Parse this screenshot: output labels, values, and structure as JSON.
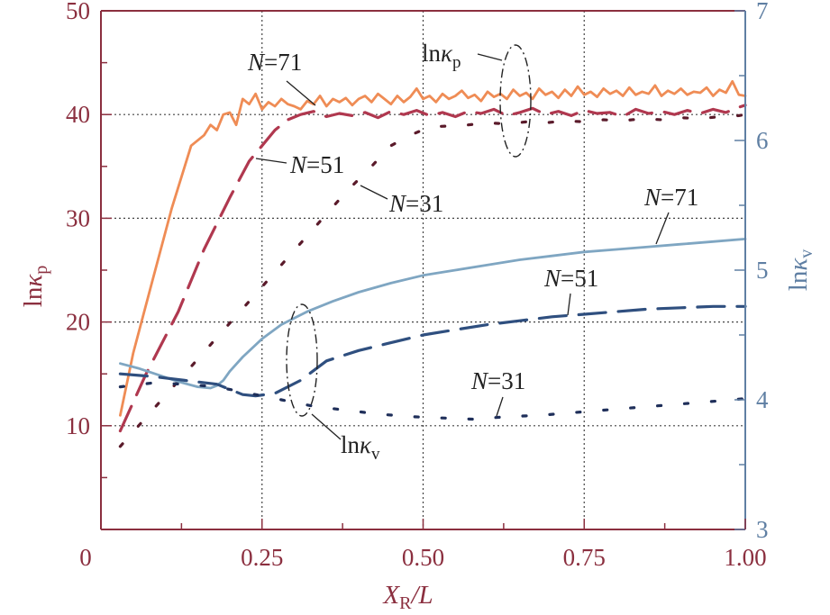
{
  "chart_data": {
    "type": "line",
    "title": "",
    "xlabel": {
      "main": "X",
      "sub": "R",
      "rest": "/L"
    },
    "ylabel_left": {
      "main": "ln",
      "kappa": "κ",
      "sub": "p"
    },
    "ylabel_right": {
      "main": "ln",
      "kappa": "κ",
      "sub": "v"
    },
    "xlim": [
      0,
      1.0
    ],
    "ylim_left": [
      0,
      50
    ],
    "ylim_right": [
      3,
      7
    ],
    "grid": true,
    "x_ticks": [
      {
        "value": 0.25,
        "label": "0.25"
      },
      {
        "value": 0.5,
        "label": "0.50"
      },
      {
        "value": 0.75,
        "label": "0.75"
      },
      {
        "value": 1.0,
        "label": "1.00"
      }
    ],
    "origin_label": "0",
    "y_left_ticks": [
      {
        "value": 10,
        "label": "10"
      },
      {
        "value": 20,
        "label": "20"
      },
      {
        "value": 30,
        "label": "30"
      },
      {
        "value": 40,
        "label": "40"
      },
      {
        "value": 50,
        "label": "50"
      }
    ],
    "y_right_ticks": [
      {
        "value": 3,
        "label": "3"
      },
      {
        "value": 4,
        "label": "4"
      },
      {
        "value": 5,
        "label": "5"
      },
      {
        "value": 6,
        "label": "6"
      },
      {
        "value": 7,
        "label": "7"
      }
    ],
    "colors": {
      "left_axis": "#8b2f3f",
      "right_axis": "#5f7fa3",
      "p_N71": "#ef8c55",
      "p_N51": "#b0384f",
      "p_N31": "#5a1a2a",
      "v_N71": "#7fa6c2",
      "v_N51": "#2f4f7f",
      "v_N31": "#1f2f5a"
    },
    "series": [
      {
        "name": "lnκp N=71",
        "axis": "left",
        "style": "solid",
        "x": [
          0.03,
          0.05,
          0.08,
          0.11,
          0.14,
          0.16,
          0.17,
          0.18,
          0.19,
          0.2,
          0.21,
          0.22,
          0.23,
          0.24,
          0.25,
          0.26,
          0.27,
          0.28,
          0.29,
          0.3,
          0.31,
          0.32,
          0.33,
          0.34,
          0.35,
          0.36,
          0.37,
          0.38,
          0.39,
          0.4,
          0.41,
          0.42,
          0.43,
          0.44,
          0.45,
          0.46,
          0.47,
          0.48,
          0.49,
          0.5,
          0.51,
          0.52,
          0.53,
          0.54,
          0.55,
          0.56,
          0.57,
          0.58,
          0.59,
          0.6,
          0.61,
          0.62,
          0.63,
          0.64,
          0.65,
          0.66,
          0.67,
          0.68,
          0.69,
          0.7,
          0.71,
          0.72,
          0.73,
          0.74,
          0.75,
          0.76,
          0.77,
          0.78,
          0.79,
          0.8,
          0.81,
          0.82,
          0.83,
          0.84,
          0.85,
          0.86,
          0.87,
          0.88,
          0.89,
          0.9,
          0.91,
          0.92,
          0.93,
          0.94,
          0.95,
          0.96,
          0.97,
          0.98,
          0.99,
          1.0
        ],
        "y": [
          11,
          17,
          24,
          31,
          37,
          38,
          39,
          38.5,
          40,
          40.2,
          39,
          41.5,
          41,
          42,
          40.5,
          41.2,
          40.8,
          41.5,
          41,
          40.8,
          40.5,
          41.3,
          41,
          41.8,
          40.8,
          41.5,
          41.2,
          41.6,
          40.9,
          41.5,
          41.8,
          41.2,
          42,
          41.5,
          41,
          41.8,
          41.2,
          41.7,
          42.5,
          41.5,
          41.8,
          41.2,
          42,
          41.5,
          41.8,
          42.3,
          41.6,
          41.9,
          41.3,
          42.2,
          41.7,
          42,
          41.5,
          42.4,
          41.8,
          42.1,
          41.5,
          42.5,
          41.9,
          42.2,
          41.6,
          42.4,
          41.8,
          42.7,
          41.9,
          42.2,
          41.7,
          42.5,
          42,
          42.3,
          41.8,
          42.6,
          41.9,
          42.2,
          42,
          42.8,
          41.8,
          42.3,
          42,
          42.5,
          41.9,
          42.2,
          42.1,
          42.6,
          41.8,
          42.4,
          42.1,
          43.2,
          41.9,
          41.8
        ]
      },
      {
        "name": "lnκp N=51",
        "axis": "left",
        "style": "dashed",
        "x": [
          0.03,
          0.07,
          0.12,
          0.16,
          0.2,
          0.23,
          0.25,
          0.27,
          0.29,
          0.31,
          0.33,
          0.35,
          0.37,
          0.39,
          0.41,
          0.43,
          0.45,
          0.47,
          0.49,
          0.51,
          0.53,
          0.55,
          0.57,
          0.59,
          0.61,
          0.63,
          0.65,
          0.67,
          0.69,
          0.71,
          0.73,
          0.75,
          0.77,
          0.79,
          0.81,
          0.83,
          0.85,
          0.87,
          0.89,
          0.91,
          0.93,
          0.95,
          0.97,
          0.99,
          1.0
        ],
        "y": [
          9.5,
          15,
          21,
          27,
          32,
          35.5,
          37,
          38.5,
          39.5,
          40,
          40.3,
          39.8,
          40.1,
          39.9,
          40.2,
          39.7,
          40.3,
          40,
          40.4,
          39.9,
          40.2,
          39.8,
          40.3,
          40.1,
          40.5,
          39.9,
          40.2,
          40.6,
          40,
          40.3,
          39.9,
          40.4,
          40.1,
          40.2,
          39.8,
          40.5,
          40.1,
          40.3,
          40,
          40.4,
          40.1,
          40.5,
          40.2,
          40.7,
          40.9
        ]
      },
      {
        "name": "lnκp N=31",
        "axis": "left",
        "style": "dotted",
        "x": [
          0.03,
          0.08,
          0.13,
          0.18,
          0.23,
          0.28,
          0.33,
          0.38,
          0.42,
          0.45,
          0.48,
          0.51,
          0.54,
          0.57,
          0.6,
          0.63,
          0.66,
          0.69,
          0.72,
          0.75,
          0.78,
          0.81,
          0.84,
          0.87,
          0.9,
          0.93,
          0.96,
          0.99,
          1.0
        ],
        "y": [
          8,
          11.5,
          15,
          18.5,
          22,
          25.5,
          29,
          32.5,
          35,
          37,
          38,
          38.8,
          38.9,
          39,
          39.2,
          39.1,
          39.3,
          39.2,
          39.4,
          39.3,
          39.5,
          39.4,
          39.6,
          39.5,
          39.7,
          39.6,
          39.8,
          39.9,
          40
        ]
      },
      {
        "name": "lnκv N=71",
        "axis": "right",
        "style": "solid",
        "x": [
          0.03,
          0.06,
          0.09,
          0.12,
          0.15,
          0.17,
          0.18,
          0.19,
          0.2,
          0.22,
          0.25,
          0.28,
          0.32,
          0.36,
          0.4,
          0.45,
          0.5,
          0.55,
          0.6,
          0.65,
          0.7,
          0.75,
          0.8,
          0.85,
          0.9,
          0.95,
          1.0
        ],
        "y": [
          4.28,
          4.24,
          4.19,
          4.14,
          4.1,
          4.09,
          4.11,
          4.15,
          4.22,
          4.33,
          4.47,
          4.58,
          4.68,
          4.76,
          4.83,
          4.9,
          4.96,
          5.0,
          5.04,
          5.08,
          5.11,
          5.14,
          5.16,
          5.18,
          5.2,
          5.22,
          5.24
        ]
      },
      {
        "name": "lnκv N=51",
        "axis": "right",
        "style": "dashed",
        "x": [
          0.03,
          0.08,
          0.13,
          0.18,
          0.22,
          0.24,
          0.27,
          0.31,
          0.35,
          0.4,
          0.45,
          0.5,
          0.55,
          0.6,
          0.65,
          0.7,
          0.75,
          0.8,
          0.85,
          0.9,
          0.95,
          1.0
        ],
        "y": [
          4.2,
          4.18,
          4.15,
          4.12,
          4.04,
          4.03,
          4.05,
          4.15,
          4.3,
          4.38,
          4.44,
          4.5,
          4.54,
          4.58,
          4.61,
          4.64,
          4.66,
          4.68,
          4.7,
          4.71,
          4.72,
          4.72
        ]
      },
      {
        "name": "lnκv N=31",
        "axis": "right",
        "style": "dotted",
        "x": [
          0.03,
          0.08,
          0.13,
          0.18,
          0.23,
          0.28,
          0.33,
          0.38,
          0.43,
          0.48,
          0.53,
          0.58,
          0.63,
          0.68,
          0.73,
          0.78,
          0.83,
          0.88,
          0.93,
          0.98,
          1.0
        ],
        "y": [
          4.1,
          4.13,
          4.12,
          4.1,
          4.05,
          4.0,
          3.95,
          3.92,
          3.89,
          3.87,
          3.86,
          3.85,
          3.87,
          3.88,
          3.9,
          3.92,
          3.94,
          3.96,
          3.98,
          4.0,
          4.01
        ]
      }
    ],
    "annotations": {
      "p_N71": {
        "italic": "N",
        "rest": "=71"
      },
      "p_N51": {
        "italic": "N",
        "rest": "=51"
      },
      "p_N31": {
        "italic": "N",
        "rest": "=31"
      },
      "v_N71": {
        "italic": "N",
        "rest": "=71"
      },
      "v_N51": {
        "italic": "N",
        "rest": "=51"
      },
      "v_N31": {
        "italic": "N",
        "rest": "=31"
      },
      "group_p": {
        "main": "ln",
        "kappa": "κ",
        "sub": "p"
      },
      "group_v": {
        "main": "ln",
        "kappa": "κ",
        "sub": "v"
      }
    }
  }
}
